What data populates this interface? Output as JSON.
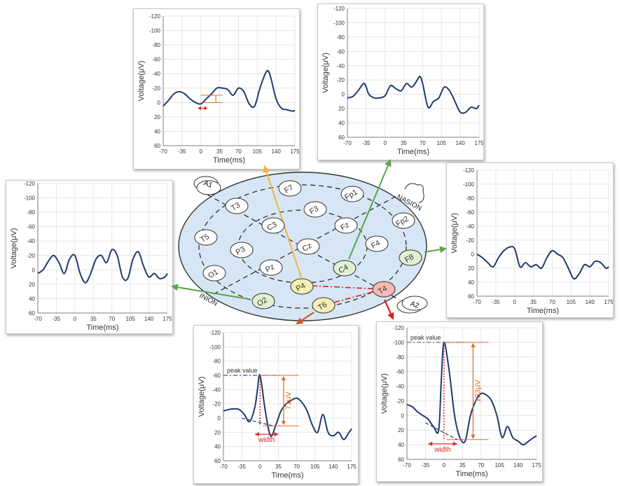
{
  "colors": {
    "trace": "#1f3a6e",
    "head_fill": "#d6e6f5",
    "arrow_orange": "#f5b23a",
    "arrow_green": "#5aa548",
    "arrow_red": "#d9231f",
    "arrow_darkorange": "#d2572a",
    "dash_red": "#e02020",
    "measure_orange": "#e06a1e",
    "peak_line": "#2f5597",
    "peak_line_green": "#3a8f3a",
    "node_yellow": "#f6efb5",
    "node_green": "#e2efd3",
    "node_pink": "#f4b8b5"
  },
  "head": {
    "label_nasion": "NASION",
    "label_inion": "INION",
    "ear_left": "A1",
    "ear_right": "A2",
    "electrodes": [
      {
        "label": "F7",
        "style": "plain"
      },
      {
        "label": "Fp1",
        "style": "plain"
      },
      {
        "label": "T3",
        "style": "plain"
      },
      {
        "label": "F3",
        "style": "plain"
      },
      {
        "label": "Fp2",
        "style": "plain"
      },
      {
        "label": "C3",
        "style": "plain"
      },
      {
        "label": "Fz",
        "style": "plain"
      },
      {
        "label": "T5",
        "style": "plain"
      },
      {
        "label": "F4",
        "style": "plain"
      },
      {
        "label": "P3",
        "style": "plain"
      },
      {
        "label": "Cz",
        "style": "plain"
      },
      {
        "label": "F8",
        "style": "green"
      },
      {
        "label": "C4",
        "style": "green"
      },
      {
        "label": "O1",
        "style": "plain"
      },
      {
        "label": "Pz",
        "style": "plain"
      },
      {
        "label": "P4",
        "style": "yellow"
      },
      {
        "label": "T4",
        "style": "pink"
      },
      {
        "label": "O2",
        "style": "green"
      },
      {
        "label": "T6",
        "style": "yellow"
      }
    ]
  },
  "charts": [
    {
      "id": "chart-top-left",
      "ylabel": "Voltage(μV)",
      "xlabel": "Time(ms)",
      "yticks": [
        "-120",
        "-100",
        "-80",
        "-60",
        "-40",
        "-20",
        "0",
        "20",
        "40",
        "60"
      ],
      "xticks": [
        "-70",
        "-35",
        "0",
        "35",
        "70",
        "105",
        "140",
        "175"
      ],
      "annotations": {}
    },
    {
      "id": "chart-top-right",
      "ylabel": "Voltage(μV)",
      "xlabel": "Time(ms)",
      "yticks": [
        "-120",
        "-100",
        "-80",
        "-60",
        "-40",
        "-20",
        "0",
        "20",
        "40",
        "60"
      ],
      "xticks": [
        "-70",
        "-35",
        "0",
        "35",
        "70",
        "105",
        "140",
        "175"
      ],
      "annotations": {}
    },
    {
      "id": "chart-left",
      "ylabel": "Voltage(μV)",
      "xlabel": "Time(ms)",
      "yticks": [
        "-120",
        "-100",
        "-80",
        "-60",
        "-40",
        "-20",
        "0",
        "20",
        "40",
        "60"
      ],
      "xticks": [
        "-70",
        "-35",
        "0",
        "35",
        "70",
        "105",
        "140",
        "175"
      ],
      "annotations": {}
    },
    {
      "id": "chart-right",
      "ylabel": "Voltage(μV)",
      "xlabel": "Time(ms)",
      "yticks": [
        "-120",
        "-100",
        "-80",
        "-60",
        "-40",
        "-20",
        "0",
        "20",
        "40",
        "60"
      ],
      "xticks": [
        "-70",
        "-35",
        "0",
        "35",
        "70",
        "105",
        "140",
        "175"
      ],
      "annotations": {}
    },
    {
      "id": "chart-bottom-center",
      "ylabel": "Voltage(μV)",
      "xlabel": "Time(ms)",
      "yticks": [
        "-120",
        "-100",
        "-80",
        "-60",
        "-40",
        "-20",
        "0",
        "20",
        "40",
        "60"
      ],
      "xticks": [
        "-70",
        "-35",
        "0",
        "35",
        "70",
        "105",
        "140",
        "175"
      ],
      "annotations": {
        "peak": "peak value",
        "amplitude": "71μV",
        "width": "width"
      }
    },
    {
      "id": "chart-bottom-right",
      "ylabel": "Voltage(μV)",
      "xlabel": "Time(ms)",
      "yticks": [
        "-120",
        "-100",
        "-80",
        "-60",
        "-40",
        "-20",
        "0",
        "20",
        "40",
        "60"
      ],
      "xticks": [
        "-70",
        "-35",
        "0",
        "35",
        "70",
        "105",
        "140",
        "175"
      ],
      "annotations": {
        "peak": "peak value",
        "amplitude": "133μV",
        "width": "width"
      }
    }
  ],
  "chart_data": [
    {
      "type": "line",
      "xlabel": "Time(ms)",
      "ylabel": "Voltage(μV)",
      "xlim": [
        -70,
        175
      ],
      "ylim": [
        60,
        -120
      ],
      "y_inverted": true,
      "x": [
        -70,
        -60,
        -50,
        -40,
        -30,
        -20,
        -10,
        0,
        10,
        20,
        30,
        40,
        50,
        60,
        70,
        80,
        90,
        100,
        110,
        120,
        125,
        130,
        140,
        150,
        160,
        170,
        175
      ],
      "series": [
        {
          "values": [
            5,
            -3,
            -12,
            -15,
            -12,
            -5,
            0,
            2,
            -5,
            -12,
            -20,
            -20,
            -18,
            -10,
            -20,
            -15,
            2,
            5,
            -20,
            -40,
            -44,
            -35,
            -5,
            8,
            10,
            12,
            11
          ]
        }
      ]
    },
    {
      "type": "line",
      "xlabel": "Time(ms)",
      "ylabel": "Voltage(μV)",
      "xlim": [
        -70,
        175
      ],
      "ylim": [
        60,
        -120
      ],
      "y_inverted": true,
      "x": [
        -70,
        -60,
        -50,
        -40,
        -35,
        -30,
        -20,
        -10,
        0,
        10,
        20,
        30,
        40,
        50,
        60,
        65,
        70,
        80,
        90,
        100,
        110,
        120,
        130,
        140,
        150,
        160,
        170,
        175
      ],
      "series": [
        {
          "values": [
            5,
            3,
            -5,
            -15,
            -10,
            0,
            5,
            5,
            2,
            -12,
            -8,
            -5,
            -15,
            -10,
            -20,
            -25,
            -15,
            18,
            10,
            5,
            -10,
            -5,
            10,
            25,
            25,
            18,
            20,
            15
          ]
        }
      ]
    },
    {
      "type": "line",
      "xlabel": "Time(ms)",
      "ylabel": "Voltage(μV)",
      "xlim": [
        -70,
        175
      ],
      "ylim": [
        60,
        -120
      ],
      "y_inverted": true,
      "x": [
        -70,
        -60,
        -50,
        -40,
        -30,
        -20,
        -10,
        0,
        10,
        20,
        30,
        40,
        50,
        60,
        70,
        80,
        90,
        100,
        110,
        120,
        130,
        140,
        150,
        160,
        170,
        175
      ],
      "series": [
        {
          "values": [
            5,
            0,
            -12,
            -20,
            -10,
            5,
            -15,
            -20,
            5,
            18,
            5,
            -15,
            -20,
            -10,
            -28,
            -20,
            10,
            12,
            -15,
            -25,
            -5,
            10,
            5,
            12,
            10,
            5
          ]
        }
      ]
    },
    {
      "type": "line",
      "xlabel": "Time(ms)",
      "ylabel": "Voltage(μV)",
      "xlim": [
        -70,
        175
      ],
      "ylim": [
        60,
        -120
      ],
      "y_inverted": true,
      "x": [
        -70,
        -60,
        -50,
        -40,
        -30,
        -20,
        -10,
        0,
        10,
        20,
        30,
        40,
        50,
        60,
        70,
        80,
        90,
        100,
        110,
        120,
        130,
        140,
        150,
        160,
        170,
        175
      ],
      "series": [
        {
          "values": [
            0,
            5,
            12,
            18,
            5,
            -5,
            -10,
            -8,
            18,
            12,
            18,
            15,
            20,
            5,
            -5,
            0,
            5,
            20,
            35,
            28,
            15,
            18,
            10,
            12,
            20,
            18
          ]
        }
      ]
    },
    {
      "type": "line",
      "xlabel": "Time(ms)",
      "ylabel": "Voltage(μV)",
      "xlim": [
        -70,
        175
      ],
      "ylim": [
        60,
        -120
      ],
      "y_inverted": true,
      "x": [
        -70,
        -60,
        -50,
        -40,
        -30,
        -20,
        -10,
        -5,
        0,
        10,
        20,
        30,
        40,
        50,
        60,
        70,
        80,
        90,
        100,
        110,
        120,
        130,
        140,
        150,
        160,
        170,
        175
      ],
      "series": [
        {
          "values": [
            -10,
            -12,
            -13,
            -12,
            -5,
            5,
            -15,
            -40,
            -60,
            -10,
            25,
            10,
            -10,
            -20,
            -25,
            -28,
            -22,
            -10,
            10,
            20,
            -5,
            20,
            25,
            20,
            30,
            20,
            15
          ]
        }
      ]
    },
    {
      "type": "line",
      "xlabel": "Time(ms)",
      "ylabel": "Voltage(μV)",
      "xlim": [
        -70,
        175
      ],
      "ylim": [
        60,
        -120
      ],
      "y_inverted": true,
      "x": [
        -70,
        -60,
        -50,
        -40,
        -30,
        -20,
        -10,
        -5,
        0,
        10,
        20,
        30,
        40,
        50,
        60,
        70,
        80,
        90,
        100,
        110,
        120,
        130,
        140,
        150,
        160,
        170,
        175
      ],
      "series": [
        {
          "values": [
            -15,
            -12,
            -5,
            0,
            5,
            15,
            20,
            -50,
            -100,
            -60,
            0,
            30,
            35,
            0,
            -20,
            -30,
            -28,
            -20,
            0,
            30,
            15,
            30,
            35,
            40,
            35,
            30,
            28
          ]
        }
      ]
    }
  ]
}
